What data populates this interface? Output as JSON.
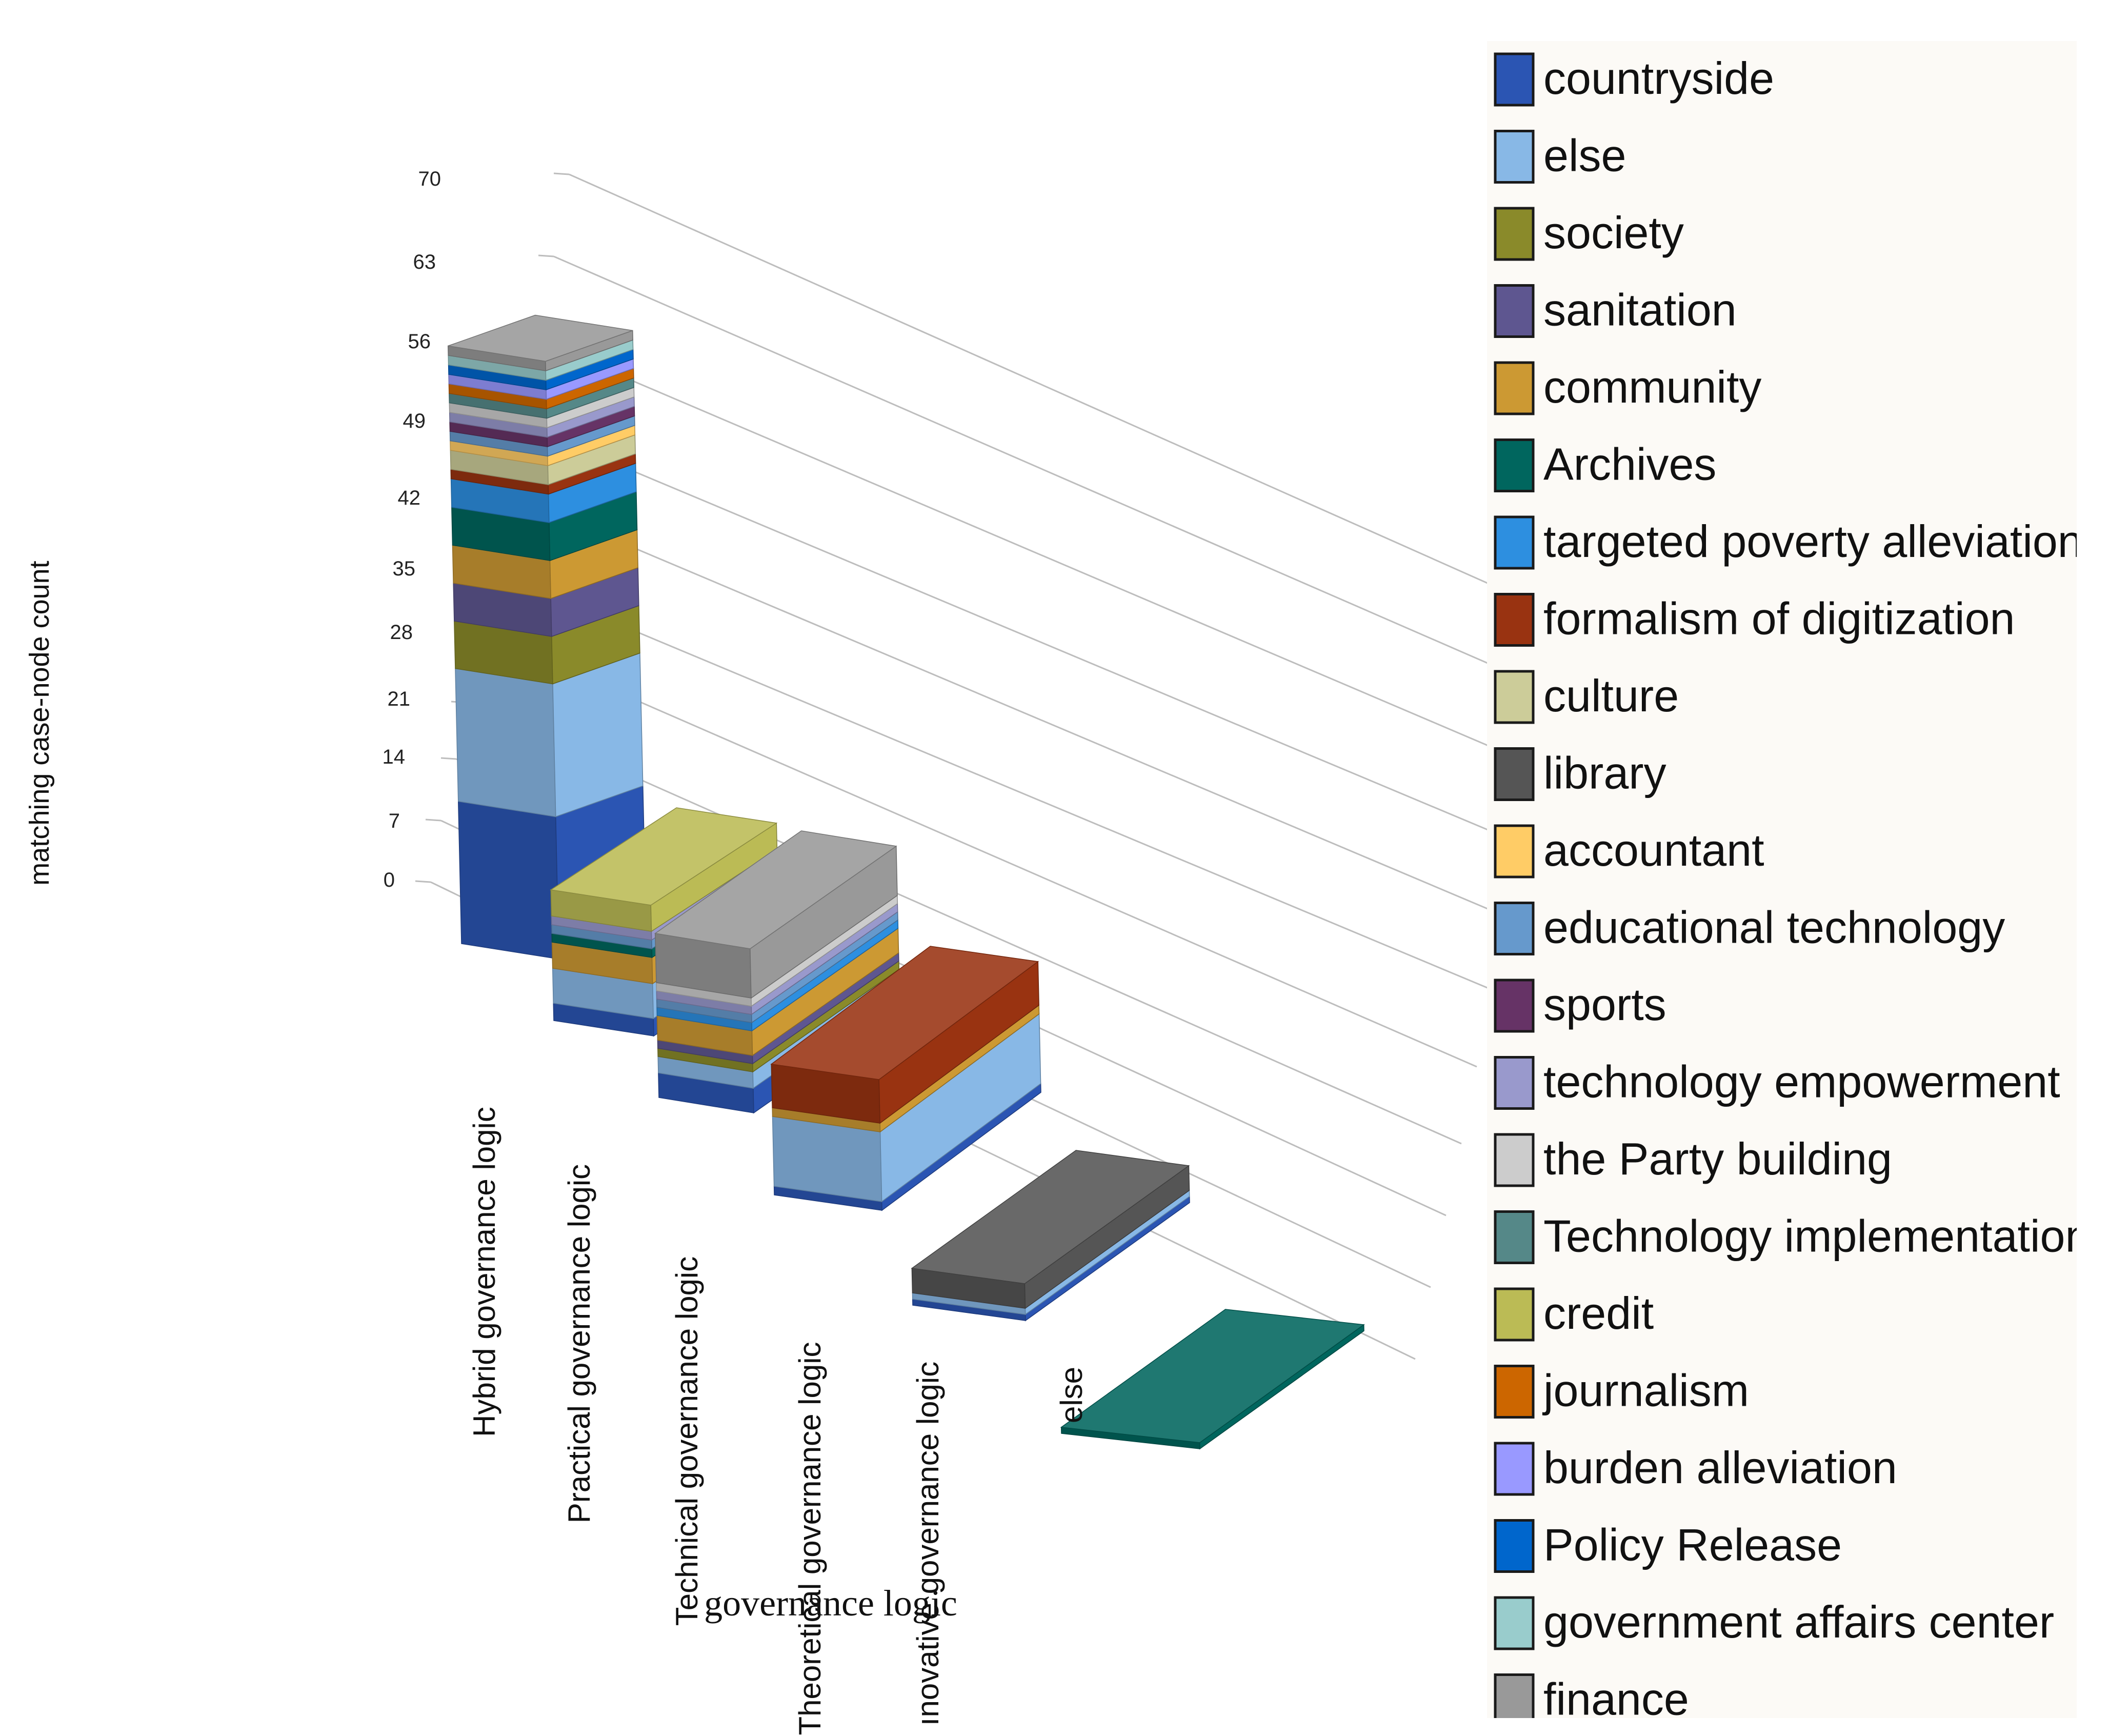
{
  "chart_data": {
    "type": "bar",
    "subtype": "3d-stacked",
    "title": "",
    "xlabel": "governance logic",
    "ylabel": "matching case-node count",
    "ylim": [
      0,
      70
    ],
    "yticks": [
      0,
      7,
      14,
      21,
      28,
      35,
      42,
      49,
      56,
      63,
      70
    ],
    "grid": true,
    "legend_position": "right",
    "categories": [
      "Hybrid governance logic",
      "Practical governance logic",
      "Technical governance logic",
      "Theoretical governance logic",
      "Innovative governance logic",
      "else"
    ],
    "category_labels_shown": [
      "Hybrid governance logic",
      "Practical governance logic",
      "Technical governance logic",
      "Theoretical governance logic",
      "ınovative governance logic",
      "else"
    ],
    "series": [
      {
        "name": "countryside",
        "color": "#2b55b3",
        "values": [
          15,
          2,
          3,
          1,
          1,
          0
        ]
      },
      {
        "name": "else",
        "color": "#88b8e6",
        "values": [
          14,
          4,
          2,
          8,
          1,
          0
        ]
      },
      {
        "name": "society",
        "color": "#8a8a2a",
        "values": [
          5,
          0,
          1,
          0,
          0,
          0
        ]
      },
      {
        "name": "sanitation",
        "color": "#5e5690",
        "values": [
          4,
          0,
          1,
          0,
          0,
          0
        ]
      },
      {
        "name": "community",
        "color": "#cc9933",
        "values": [
          4,
          3,
          3,
          1,
          0,
          0
        ]
      },
      {
        "name": "Archives",
        "color": "#00665e",
        "values": [
          4,
          1,
          0,
          0,
          0,
          1
        ]
      },
      {
        "name": "targeted poverty alleviation",
        "color": "#2d8fe0",
        "values": [
          3,
          0,
          1,
          0,
          0,
          0
        ]
      },
      {
        "name": "formalism of digitization",
        "color": "#993311",
        "values": [
          1,
          0,
          0,
          5,
          0,
          0
        ]
      },
      {
        "name": "culture",
        "color": "#cccc99",
        "values": [
          2,
          0,
          0,
          0,
          0,
          0
        ]
      },
      {
        "name": "library",
        "color": "#555555",
        "values": [
          0,
          0,
          0,
          0,
          4,
          0
        ]
      },
      {
        "name": "accountant",
        "color": "#ffcc66",
        "values": [
          1,
          0,
          0,
          0,
          0,
          0
        ]
      },
      {
        "name": "educational technology",
        "color": "#6699cc",
        "values": [
          1,
          1,
          1,
          0,
          0,
          0
        ]
      },
      {
        "name": "sports",
        "color": "#663366",
        "values": [
          1,
          0,
          0,
          0,
          0,
          0
        ]
      },
      {
        "name": "technology empowerment",
        "color": "#9999cc",
        "values": [
          1,
          1,
          1,
          0,
          0,
          0
        ]
      },
      {
        "name": "the Party building",
        "color": "#cccccc",
        "values": [
          1,
          0,
          1,
          0,
          0,
          0
        ]
      },
      {
        "name": "Technology implementation",
        "color": "#558888",
        "values": [
          1,
          0,
          0,
          0,
          0,
          0
        ]
      },
      {
        "name": "credit",
        "color": "#bbbb55",
        "values": [
          0,
          3,
          0,
          0,
          0,
          0
        ]
      },
      {
        "name": "journalism",
        "color": "#cc6600",
        "values": [
          1,
          0,
          0,
          0,
          0,
          0
        ]
      },
      {
        "name": "burden alleviation",
        "color": "#9999ff",
        "values": [
          1,
          0,
          0,
          0,
          0,
          0
        ]
      },
      {
        "name": "Policy Release",
        "color": "#0066cc",
        "values": [
          1,
          0,
          0,
          0,
          0,
          0
        ]
      },
      {
        "name": "government affairs center",
        "color": "#99cccc",
        "values": [
          1,
          0,
          0,
          0,
          0,
          0
        ]
      },
      {
        "name": "finance",
        "color": "#999999",
        "values": [
          1,
          0,
          6,
          0,
          0,
          0
        ]
      }
    ]
  }
}
